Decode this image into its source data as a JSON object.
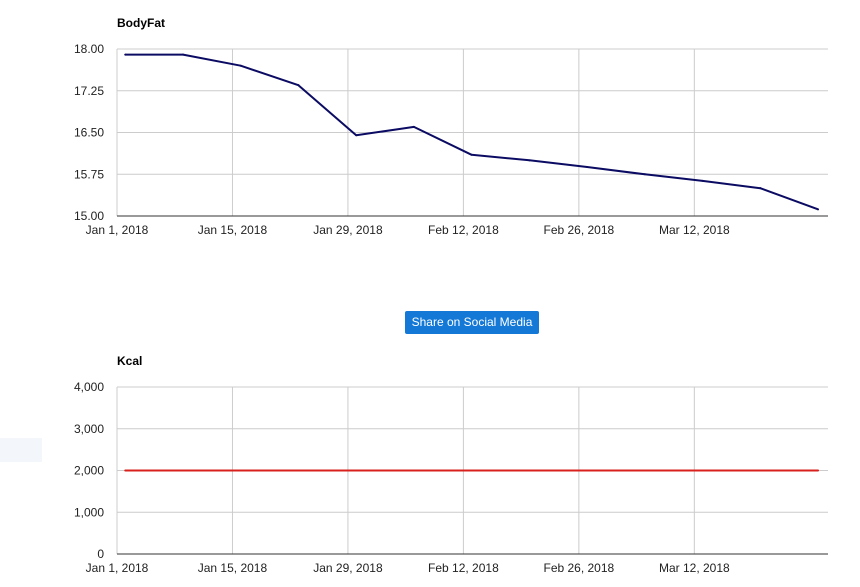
{
  "share_button": {
    "label": "Share on Social Media"
  },
  "colors": {
    "bodyfat_line": "#0b0b63",
    "kcal_line": "#d9201c",
    "grid": "#cccccc",
    "button": "#1479d6"
  },
  "chart_data": [
    {
      "type": "line",
      "title": "BodyFat",
      "xlabel": "",
      "ylabel": "",
      "x_ticks": [
        "Jan 1, 2018",
        "Jan 15, 2018",
        "Jan 29, 2018",
        "Feb 12, 2018",
        "Feb 26, 2018",
        "Mar 12, 2018"
      ],
      "y_ticks": [
        "15.00",
        "15.75",
        "16.50",
        "17.25",
        "18.00"
      ],
      "ylim": [
        15,
        18
      ],
      "xlim": [
        "2018-01-01",
        "2018-03-27"
      ],
      "grid": true,
      "series": [
        {
          "x": [
            "2018-01-02",
            "2018-01-09",
            "2018-01-16",
            "2018-01-23",
            "2018-01-30",
            "2018-02-06",
            "2018-02-13",
            "2018-02-20",
            "2018-02-27",
            "2018-03-06",
            "2018-03-13",
            "2018-03-20",
            "2018-03-27"
          ],
          "values": [
            17.9,
            17.9,
            17.7,
            17.35,
            16.45,
            16.6,
            16.1,
            16.0,
            15.88,
            15.75,
            15.63,
            15.5,
            15.12
          ]
        }
      ]
    },
    {
      "type": "line",
      "title": "Kcal",
      "xlabel": "",
      "ylabel": "",
      "x_ticks": [
        "Jan 1, 2018",
        "Jan 15, 2018",
        "Jan 29, 2018",
        "Feb 12, 2018",
        "Feb 26, 2018",
        "Mar 12, 2018"
      ],
      "y_ticks": [
        "0",
        "1,000",
        "2,000",
        "3,000",
        "4,000"
      ],
      "ylim": [
        0,
        4000
      ],
      "xlim": [
        "2018-01-01",
        "2018-03-27"
      ],
      "grid": true,
      "series": [
        {
          "x": [
            "2018-01-02",
            "2018-01-09",
            "2018-01-16",
            "2018-01-23",
            "2018-01-30",
            "2018-02-06",
            "2018-02-13",
            "2018-02-20",
            "2018-02-27",
            "2018-03-06",
            "2018-03-13",
            "2018-03-20",
            "2018-03-27"
          ],
          "values": [
            2000,
            2000,
            2000,
            2000,
            2000,
            2000,
            2000,
            2000,
            2000,
            2000,
            2000,
            2000,
            2000
          ]
        }
      ]
    }
  ]
}
